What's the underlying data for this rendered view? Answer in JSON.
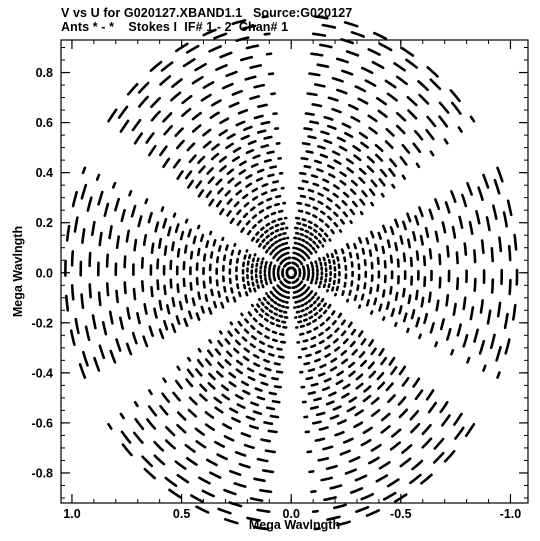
{
  "header": {
    "title_line1": "V vs U for G020127.XBAND1.1   Source:G020127",
    "title_line2": "Ants * - *    Stokes I  IF# 1 - 2  Chan# 1"
  },
  "chart_data": {
    "type": "scatter",
    "title": "V vs U for G020127.XBAND1.1   Source:G020127",
    "subtitle": "Ants * - *    Stokes I  IF# 1 - 2  Chan# 1",
    "xlabel": "Mega Wavlngth",
    "ylabel": "Mega Wavlngth",
    "xlim": [
      1.05,
      -1.08
    ],
    "ylim": [
      -0.92,
      0.93
    ],
    "x_ticks": [
      1.0,
      0.5,
      0.0,
      -0.5,
      -1.0
    ],
    "x_tick_labels": [
      "1.0",
      "0.5",
      "0.0",
      "-0.5",
      "-1.0"
    ],
    "y_ticks": [
      0.8,
      0.6,
      0.4,
      0.2,
      0.0,
      -0.2,
      -0.4,
      -0.6,
      -0.8
    ],
    "y_tick_labels": [
      "0.8",
      "0.6",
      "0.4",
      "0.2",
      "0.0",
      "-0.2",
      "-0.4",
      "-0.6",
      "-0.8"
    ],
    "grid": false,
    "point_color": "#000000",
    "uv_tracks": {
      "radii": [
        0.02,
        0.04,
        0.06,
        0.08,
        0.1,
        0.12,
        0.14,
        0.16,
        0.18,
        0.2,
        0.22,
        0.25,
        0.28,
        0.31,
        0.34,
        0.37,
        0.4,
        0.43,
        0.46,
        0.49,
        0.52,
        0.55,
        0.58,
        0.61,
        0.64,
        0.68,
        0.72,
        0.76,
        0.8,
        0.84,
        0.88,
        0.92,
        0.96,
        1.0,
        1.03
      ],
      "sector_center_angles_deg": [
        0,
        60,
        120,
        180,
        240,
        300
      ],
      "sector_half_width_deg": 24,
      "arc_length_deg": 3.2,
      "arc_gap_deg": 4.6,
      "note_symmetric": true
    }
  }
}
